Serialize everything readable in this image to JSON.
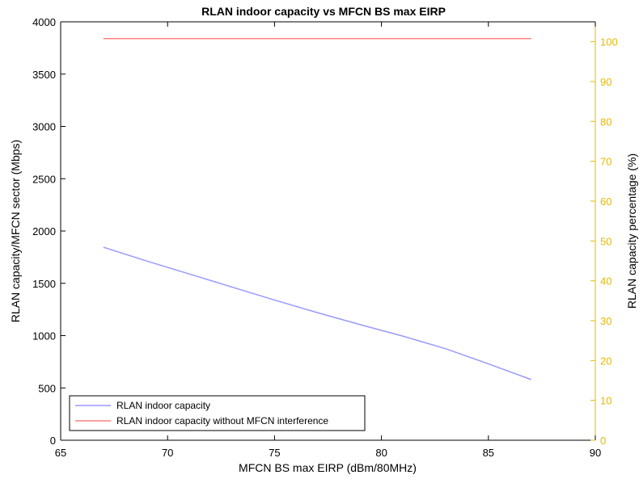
{
  "chart_data": {
    "type": "line",
    "title": "RLAN indoor capacity vs MFCN BS max EIRP",
    "xlabel": "MFCN BS max EIRP (dBm/80MHz)",
    "ylabel": "RLAN capacity/MFCN sector (Mbps)",
    "ylabel_right": "RLAN capacity percentage (%)",
    "xlim": [
      65,
      90
    ],
    "ylim": [
      0,
      4000
    ],
    "ylim_right": [
      0,
      105
    ],
    "x_ticks": [
      65,
      70,
      75,
      80,
      85,
      90
    ],
    "y_ticks": [
      0,
      500,
      1000,
      1500,
      2000,
      2500,
      3000,
      3500,
      4000
    ],
    "y_ticks_right": [
      0,
      10,
      20,
      30,
      40,
      50,
      60,
      70,
      80,
      90,
      100
    ],
    "grid": false,
    "legend_position": "bottom-left",
    "series": [
      {
        "name": "RLAN indoor capacity",
        "color": "#9999ff",
        "axis": "left",
        "x": [
          67,
          69,
          71,
          73,
          75,
          77,
          79,
          81,
          83,
          85,
          87
        ],
        "y": [
          1845,
          1715,
          1590,
          1465,
          1340,
          1220,
          1105,
          995,
          875,
          730,
          580
        ]
      },
      {
        "name": "RLAN indoor capacity without MFCN interference",
        "color": "#ff8080",
        "axis": "left",
        "x": [
          67,
          87
        ],
        "y": [
          3840,
          3840
        ]
      }
    ],
    "colors": {
      "right_axis": "#e6b800",
      "axis": "#000000"
    }
  }
}
